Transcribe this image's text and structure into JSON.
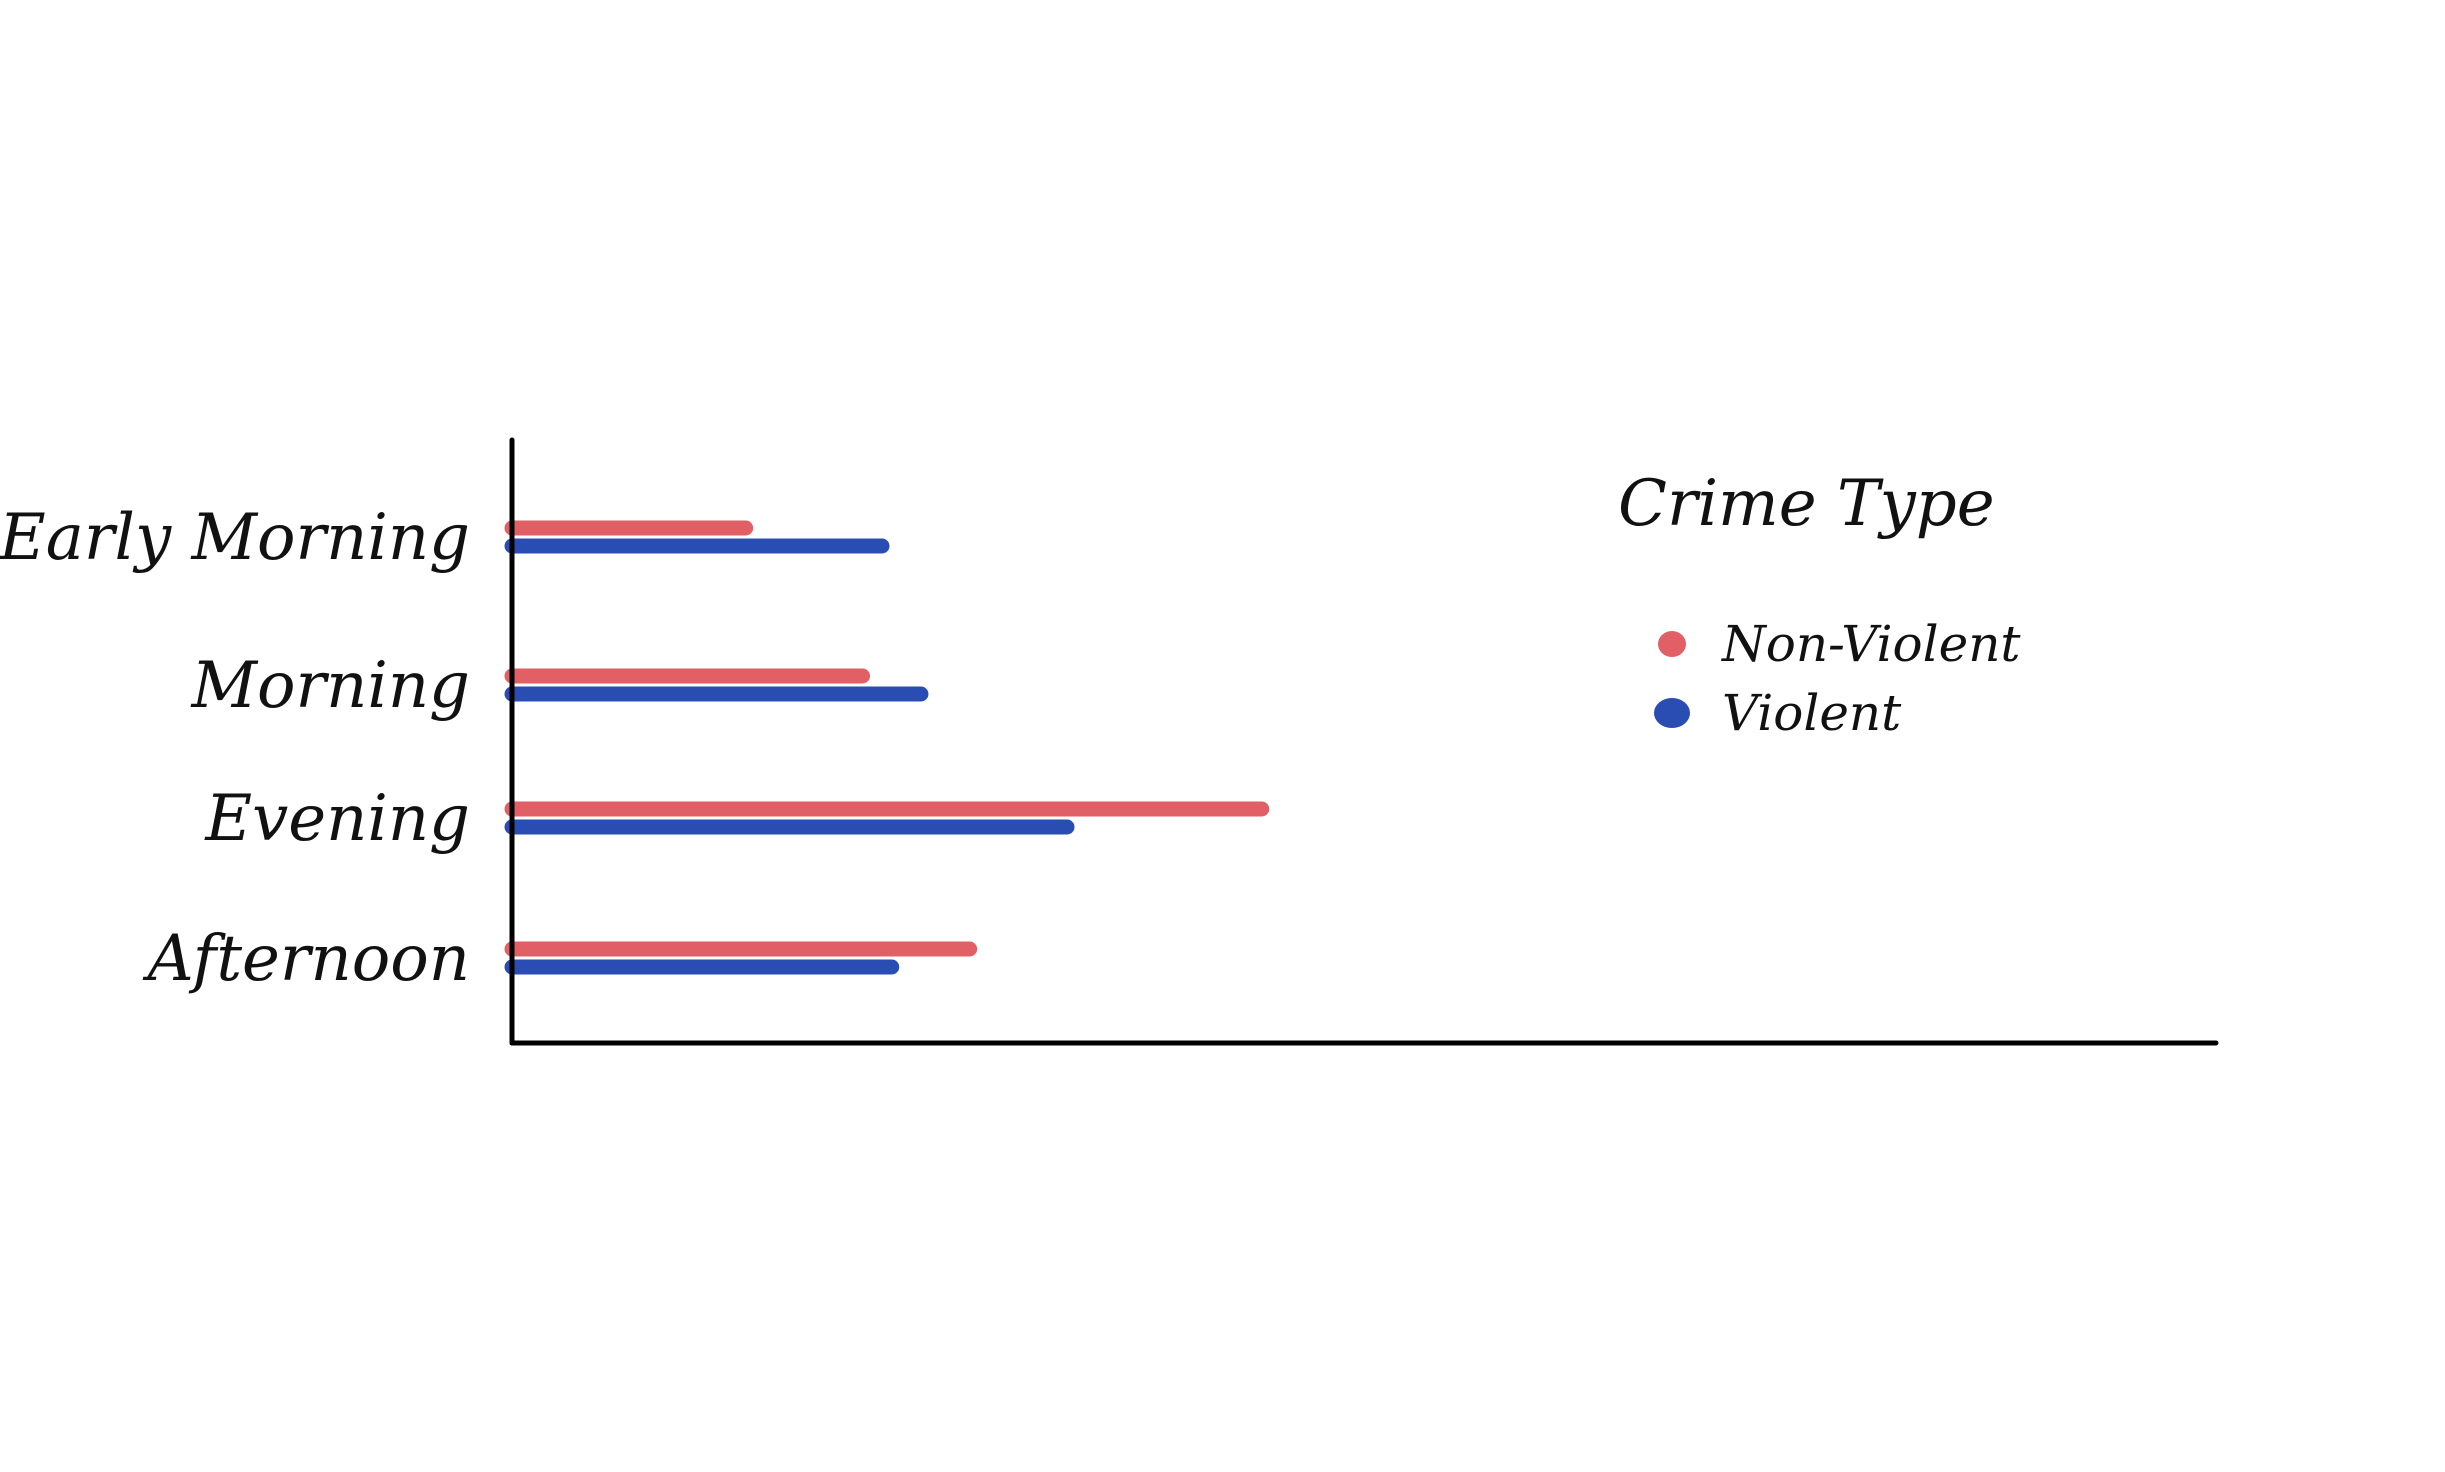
{
  "chart_data": {
    "type": "bar",
    "orientation": "horizontal",
    "categories": [
      "Early Morning",
      "Morning",
      "Evening",
      "Afternoon"
    ],
    "series": [
      {
        "name": "Non-Violent",
        "color": "#e06066",
        "values": [
          24,
          36,
          77,
          47
        ]
      },
      {
        "name": "Violent",
        "color": "#2a4db3",
        "values": [
          38,
          42,
          57,
          39
        ]
      }
    ],
    "xlim": [
      0,
      175
    ],
    "title": "",
    "xlabel": "",
    "ylabel": "",
    "grid": false,
    "legend": {
      "title": "Crime Type",
      "position": "top-right"
    }
  }
}
